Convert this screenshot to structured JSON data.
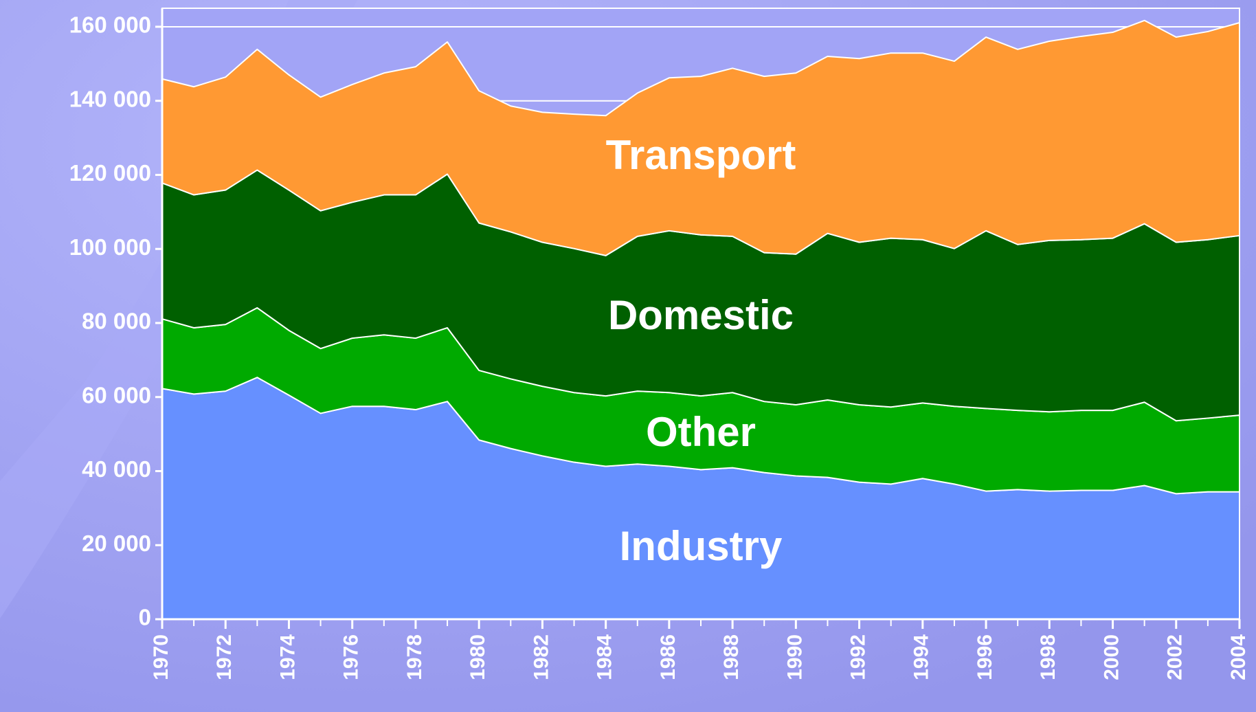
{
  "chart_data": {
    "type": "stacked_area",
    "x": [
      1970,
      1971,
      1972,
      1973,
      1974,
      1975,
      1976,
      1977,
      1978,
      1979,
      1980,
      1981,
      1982,
      1983,
      1984,
      1985,
      1986,
      1987,
      1988,
      1989,
      1990,
      1991,
      1992,
      1993,
      1994,
      1995,
      1996,
      1997,
      1998,
      1999,
      2000,
      2001,
      2002,
      2003,
      2004
    ],
    "series": [
      {
        "name": "Industry",
        "color": "#6690ff",
        "values": [
          62300,
          60800,
          61600,
          65300,
          60500,
          55600,
          57500,
          57500,
          56600,
          58800,
          48400,
          46100,
          44100,
          42400,
          41300,
          41900,
          41300,
          40400,
          40900,
          39600,
          38700,
          38300,
          37000,
          36500,
          38000,
          36500,
          34600,
          35000,
          34600,
          34800,
          34800,
          36100,
          33900,
          34400,
          34400
        ]
      },
      {
        "name": "Other",
        "color": "#00aa00",
        "values": [
          18800,
          17900,
          18000,
          18800,
          17500,
          17500,
          18400,
          19300,
          19300,
          19900,
          18800,
          18800,
          18800,
          18800,
          19000,
          19700,
          19900,
          19900,
          20300,
          19200,
          19200,
          20900,
          20900,
          20800,
          20400,
          21000,
          22300,
          21400,
          21400,
          21600,
          21600,
          22500,
          19700,
          19900,
          20700
        ]
      },
      {
        "name": "Domestic",
        "color": "#006000",
        "values": [
          36700,
          35900,
          36300,
          37200,
          37900,
          37200,
          36700,
          37800,
          38700,
          41500,
          39800,
          39700,
          38900,
          38900,
          37900,
          41800,
          43700,
          43500,
          42200,
          40200,
          40700,
          45000,
          43900,
          45600,
          44100,
          42600,
          48000,
          44800,
          46300,
          46100,
          46500,
          48200,
          48200,
          48200,
          48500
        ]
      },
      {
        "name": "Transport",
        "color": "#ff9933",
        "values": [
          28100,
          29200,
          30500,
          32600,
          31100,
          30700,
          31800,
          32900,
          34600,
          35700,
          35700,
          34000,
          35100,
          36300,
          37800,
          38700,
          41300,
          42800,
          45400,
          47600,
          48900,
          47800,
          49600,
          50000,
          50400,
          50600,
          52300,
          52700,
          53800,
          54900,
          55600,
          54900,
          55400,
          56200,
          57500
        ]
      }
    ],
    "xlim": [
      1970,
      2004
    ],
    "xticks": [
      1970,
      1972,
      1974,
      1976,
      1978,
      1980,
      1982,
      1984,
      1986,
      1988,
      1990,
      1992,
      1994,
      1996,
      1998,
      2000,
      2002,
      2004
    ],
    "ylim": [
      0,
      165000
    ],
    "yticks": [
      0,
      {
        "value": 20000,
        "label": "20 000"
      },
      {
        "value": 40000,
        "label": "40 000"
      },
      {
        "value": 60000,
        "label": "60 000"
      },
      {
        "value": 80000,
        "label": "80 000"
      },
      {
        "value": 100000,
        "label": "100 000"
      },
      {
        "value": 120000,
        "label": "120 000"
      },
      {
        "value": 140000,
        "label": "140 000"
      },
      {
        "value": 160000,
        "label": "160 000"
      }
    ],
    "grid": true
  }
}
